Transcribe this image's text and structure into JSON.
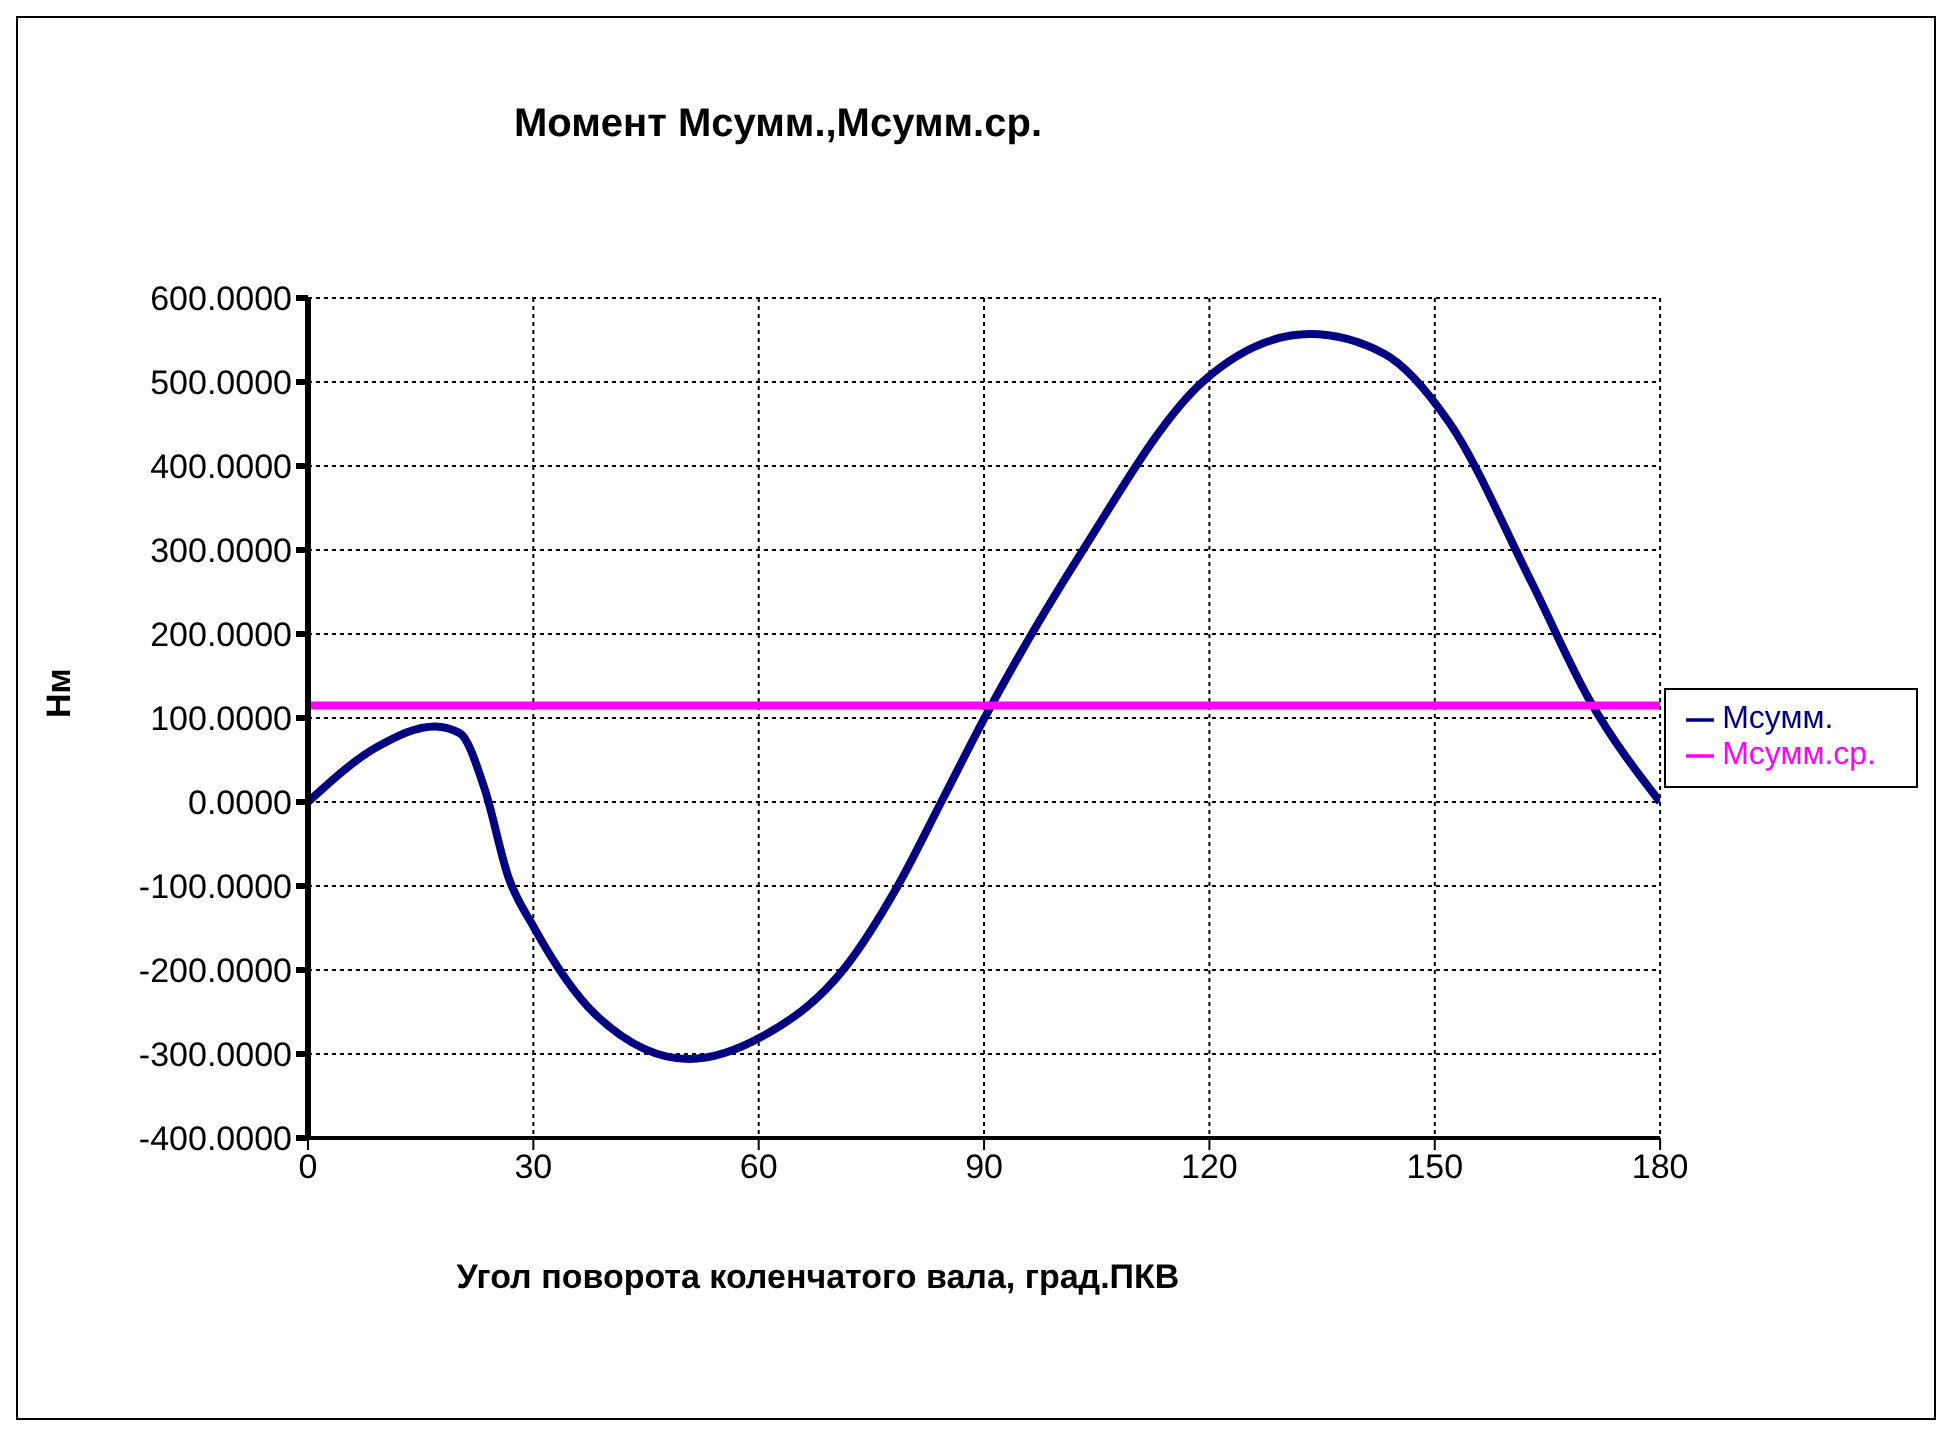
{
  "chart_data": {
    "type": "line",
    "title": "Момент  Mсумм.,Mсумм.ср.",
    "xlabel": "Угол поворота коленчатого вала, град.ПКВ",
    "ylabel": "Нм",
    "series": [
      {
        "name": "Mсумм.",
        "color": "#000080",
        "x": [
          0,
          9.3,
          16.9,
          20.2,
          23.5,
          26.7,
          30,
          38.5,
          50.7,
          60.5,
          71.5,
          78.5,
          84.3,
          90,
          102.9,
          119.2,
          133.4,
          143.2,
          151.9,
          162.8,
          170.5,
          180
        ],
        "values": [
          0,
          66,
          90,
          82,
          16,
          -90,
          -148,
          -255,
          -306,
          -279,
          -197,
          -100,
          0,
          99,
          296,
          501,
          557,
          534,
          452,
          263,
          123,
          0
        ]
      },
      {
        "name": "Mсумм.ср.",
        "color": "#ff00ff",
        "x": [
          0,
          180
        ],
        "values": [
          115,
          115
        ]
      }
    ],
    "xlim": [
      0,
      180
    ],
    "xticks": [
      0,
      30,
      60,
      90,
      120,
      150,
      180
    ],
    "ylim": [
      -400,
      600
    ],
    "yticks": [
      {
        "value": -400,
        "label": "-400.0000"
      },
      {
        "value": -300,
        "label": "-300.0000"
      },
      {
        "value": -200,
        "label": "-200.0000"
      },
      {
        "value": -100,
        "label": "-100.0000"
      },
      {
        "value": 0,
        "label": "0.0000"
      },
      {
        "value": 100,
        "label": "100.0000"
      },
      {
        "value": 200,
        "label": "200.0000"
      },
      {
        "value": 300,
        "label": "300.0000"
      },
      {
        "value": 400,
        "label": "400.0000"
      },
      {
        "value": 500,
        "label": "500.0000"
      },
      {
        "value": 600,
        "label": "600.0000"
      }
    ],
    "grid": true,
    "legend": "right",
    "marker": "none",
    "line_style": "solid"
  }
}
